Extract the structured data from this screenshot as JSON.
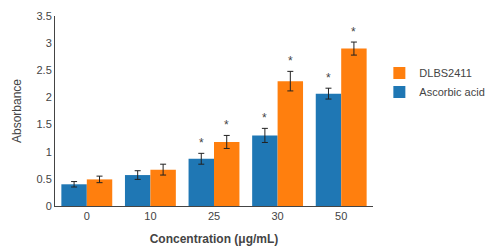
{
  "chart_data": {
    "type": "bar",
    "categories": [
      "0",
      "10",
      "25",
      "30",
      "50"
    ],
    "xlabel": "Concentration (μg/mL)",
    "ylabel": "Absorbance",
    "series": [
      {
        "name": "Ascorbic acid",
        "values": [
          0.4,
          0.57,
          0.87,
          1.3,
          2.07
        ],
        "errors": [
          0.05,
          0.08,
          0.1,
          0.13,
          0.1
        ]
      },
      {
        "name": "DLBS2411",
        "values": [
          0.49,
          0.67,
          1.18,
          2.3,
          2.9
        ],
        "errors": [
          0.06,
          0.1,
          0.12,
          0.18,
          0.12
        ]
      }
    ],
    "ylim": [
      0,
      3.5
    ],
    "yticks": [
      0,
      0.5,
      1,
      1.5,
      2,
      2.5,
      3,
      3.5
    ],
    "grid": false,
    "legend": "right",
    "annotations": [
      {
        "text": "*",
        "category": "25",
        "series": "Ascorbic acid"
      },
      {
        "text": "*",
        "category": "25",
        "series": "DLBS2411"
      },
      {
        "text": "*",
        "category": "30",
        "series": "Ascorbic acid"
      },
      {
        "text": "*",
        "category": "30",
        "series": "DLBS2411"
      },
      {
        "text": "*",
        "category": "50",
        "series": "Ascorbic acid"
      },
      {
        "text": "*",
        "category": "50",
        "series": "DLBS2411"
      }
    ]
  }
}
